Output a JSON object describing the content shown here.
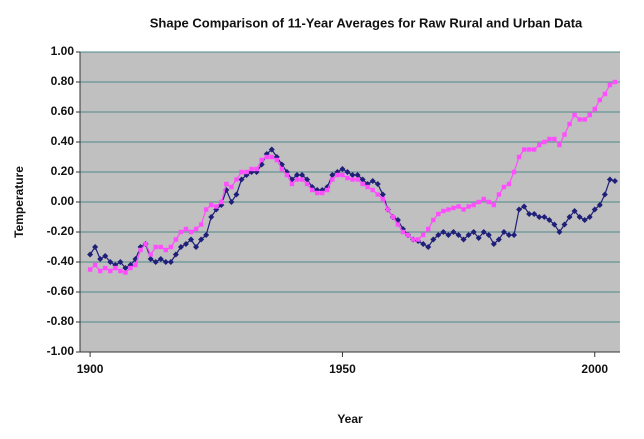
{
  "chart_data": {
    "type": "line",
    "title": "Shape Comparison of 11-Year Averages for Raw Rural and Urban Data",
    "xlabel": "Year",
    "ylabel": "Temperature",
    "x": [
      1900,
      1901,
      1902,
      1903,
      1904,
      1905,
      1906,
      1907,
      1908,
      1909,
      1910,
      1911,
      1912,
      1913,
      1914,
      1915,
      1916,
      1917,
      1918,
      1919,
      1920,
      1921,
      1922,
      1923,
      1924,
      1925,
      1926,
      1927,
      1928,
      1929,
      1930,
      1931,
      1932,
      1933,
      1934,
      1935,
      1936,
      1937,
      1938,
      1939,
      1940,
      1941,
      1942,
      1943,
      1944,
      1945,
      1946,
      1947,
      1948,
      1949,
      1950,
      1951,
      1952,
      1953,
      1954,
      1955,
      1956,
      1957,
      1958,
      1959,
      1960,
      1961,
      1962,
      1963,
      1964,
      1965,
      1966,
      1967,
      1968,
      1969,
      1970,
      1971,
      1972,
      1973,
      1974,
      1975,
      1976,
      1977,
      1978,
      1979,
      1980,
      1981,
      1982,
      1983,
      1984,
      1985,
      1986,
      1987,
      1988,
      1989,
      1990,
      1991,
      1992,
      1993,
      1994,
      1995,
      1996,
      1997,
      1998,
      1999,
      2000,
      2001,
      2002,
      2003,
      2004
    ],
    "series": [
      {
        "color": "#1f1f7a",
        "marker": "diamond",
        "values": [
          -0.35,
          -0.3,
          -0.38,
          -0.36,
          -0.4,
          -0.42,
          -0.4,
          -0.44,
          -0.42,
          -0.38,
          -0.3,
          -0.28,
          -0.38,
          -0.4,
          -0.38,
          -0.4,
          -0.4,
          -0.35,
          -0.3,
          -0.28,
          -0.25,
          -0.3,
          -0.25,
          -0.22,
          -0.1,
          -0.05,
          -0.02,
          0.08,
          0.0,
          0.05,
          0.15,
          0.18,
          0.2,
          0.2,
          0.25,
          0.32,
          0.35,
          0.3,
          0.25,
          0.2,
          0.15,
          0.18,
          0.18,
          0.15,
          0.1,
          0.08,
          0.08,
          0.1,
          0.18,
          0.2,
          0.22,
          0.2,
          0.18,
          0.18,
          0.15,
          0.12,
          0.14,
          0.12,
          0.05,
          -0.05,
          -0.1,
          -0.12,
          -0.18,
          -0.22,
          -0.25,
          -0.26,
          -0.28,
          -0.3,
          -0.25,
          -0.22,
          -0.2,
          -0.22,
          -0.2,
          -0.22,
          -0.25,
          -0.22,
          -0.2,
          -0.24,
          -0.2,
          -0.22,
          -0.28,
          -0.25,
          -0.2,
          -0.22,
          -0.22,
          -0.05,
          -0.03,
          -0.08,
          -0.08,
          -0.1,
          -0.1,
          -0.12,
          -0.15,
          -0.2,
          -0.15,
          -0.1,
          -0.06,
          -0.1,
          -0.12,
          -0.1,
          -0.05,
          -0.02,
          0.05,
          0.15,
          0.14
        ]
      },
      {
        "color": "#ff4dff",
        "marker": "square",
        "values": [
          -0.45,
          -0.42,
          -0.46,
          -0.44,
          -0.46,
          -0.44,
          -0.46,
          -0.47,
          -0.44,
          -0.42,
          -0.32,
          -0.28,
          -0.35,
          -0.3,
          -0.3,
          -0.32,
          -0.3,
          -0.25,
          -0.2,
          -0.18,
          -0.2,
          -0.18,
          -0.15,
          -0.05,
          -0.02,
          -0.03,
          0.0,
          0.12,
          0.1,
          0.15,
          0.2,
          0.2,
          0.22,
          0.22,
          0.28,
          0.3,
          0.3,
          0.28,
          0.22,
          0.18,
          0.12,
          0.15,
          0.15,
          0.12,
          0.08,
          0.06,
          0.06,
          0.08,
          0.15,
          0.18,
          0.18,
          0.16,
          0.15,
          0.15,
          0.12,
          0.1,
          0.08,
          0.05,
          0.02,
          -0.05,
          -0.1,
          -0.15,
          -0.2,
          -0.22,
          -0.25,
          -0.25,
          -0.22,
          -0.18,
          -0.12,
          -0.08,
          -0.06,
          -0.05,
          -0.04,
          -0.03,
          -0.05,
          -0.03,
          -0.02,
          0.0,
          0.02,
          0.0,
          -0.02,
          0.05,
          0.1,
          0.12,
          0.2,
          0.3,
          0.35,
          0.35,
          0.35,
          0.38,
          0.4,
          0.42,
          0.42,
          0.38,
          0.45,
          0.52,
          0.58,
          0.55,
          0.55,
          0.58,
          0.62,
          0.68,
          0.72,
          0.78,
          0.8
        ]
      }
    ],
    "xlim": [
      1898,
      2005
    ],
    "xticks": [
      1900,
      1950,
      2000
    ],
    "ylim": [
      -1,
      1
    ],
    "yticks": [
      {
        "value": -1,
        "label": "-1.00"
      },
      {
        "value": -0.8,
        "label": "-0.80"
      },
      {
        "value": -0.6,
        "label": "-0.60"
      },
      {
        "value": -0.4,
        "label": "-0.40"
      },
      {
        "value": -0.2,
        "label": "-0.20"
      },
      {
        "value": 0,
        "label": "0.00"
      },
      {
        "value": 0.2,
        "label": "0.20"
      },
      {
        "value": 0.4,
        "label": "0.40"
      },
      {
        "value": 0.6,
        "label": "0.60"
      },
      {
        "value": 0.8,
        "label": "0.80"
      },
      {
        "value": 1,
        "label": "1.00"
      }
    ],
    "grid": true
  }
}
